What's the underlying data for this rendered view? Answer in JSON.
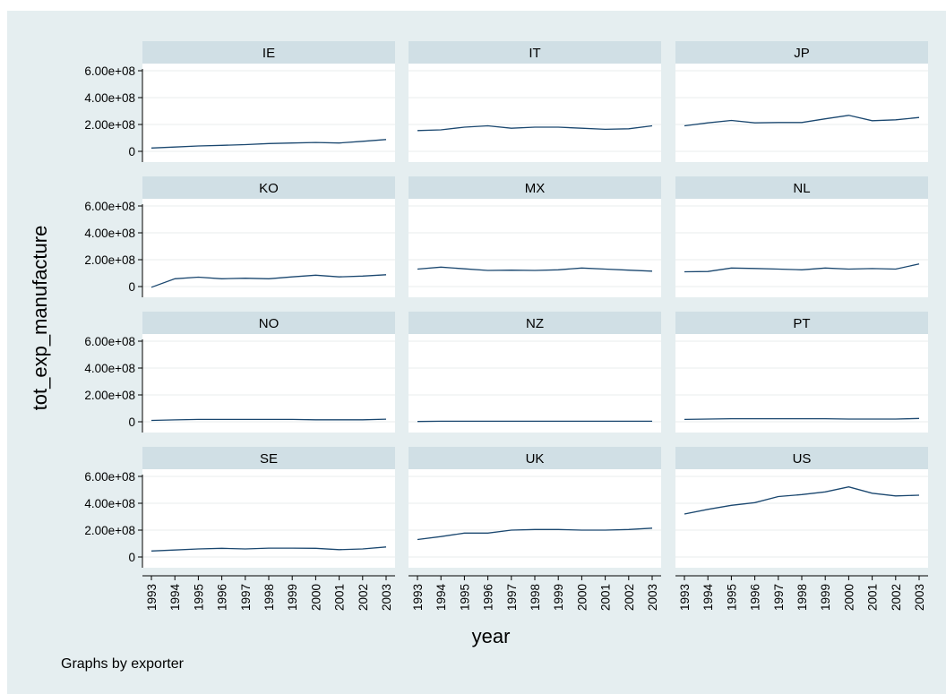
{
  "chart_data": {
    "type": "line",
    "layout": "small-multiples",
    "ylabel": "tot_exp_manufacture",
    "xlabel": "year",
    "note": "Graphs by exporter",
    "x": [
      1993,
      1994,
      1995,
      1996,
      1997,
      1998,
      1999,
      2000,
      2001,
      2002,
      2003
    ],
    "ylim": [
      0,
      600000000
    ],
    "yticks": [
      0,
      200000000,
      400000000,
      600000000
    ],
    "ytick_labels": [
      "0",
      "2.00e+08",
      "4.00e+08",
      "6.00e+08"
    ],
    "grid": true,
    "colors": {
      "background": "#e5eef0",
      "panel": "#ffffff",
      "strip": "#d0dfe5",
      "line": "#1a476f",
      "grid": "#e8eeee"
    },
    "panels": [
      {
        "name": "IE",
        "values": [
          25000000,
          32000000,
          40000000,
          45000000,
          50000000,
          58000000,
          62000000,
          66000000,
          62000000,
          75000000,
          88000000
        ]
      },
      {
        "name": "IT",
        "values": [
          155000000,
          160000000,
          180000000,
          190000000,
          172000000,
          180000000,
          180000000,
          172000000,
          164000000,
          168000000,
          190000000
        ]
      },
      {
        "name": "JP",
        "values": [
          190000000,
          212000000,
          230000000,
          212000000,
          215000000,
          215000000,
          242000000,
          268000000,
          228000000,
          235000000,
          252000000
        ]
      },
      {
        "name": "KO",
        "values": [
          -5000000,
          58000000,
          70000000,
          58000000,
          62000000,
          58000000,
          72000000,
          85000000,
          72000000,
          78000000,
          88000000
        ]
      },
      {
        "name": "MX",
        "values": [
          130000000,
          145000000,
          132000000,
          120000000,
          122000000,
          120000000,
          125000000,
          138000000,
          130000000,
          122000000,
          115000000
        ]
      },
      {
        "name": "NL",
        "values": [
          110000000,
          112000000,
          138000000,
          135000000,
          130000000,
          125000000,
          138000000,
          130000000,
          134000000,
          130000000,
          168000000
        ]
      },
      {
        "name": "NO",
        "values": [
          10000000,
          14000000,
          17000000,
          17000000,
          17000000,
          17000000,
          17000000,
          15000000,
          15000000,
          15000000,
          19000000
        ]
      },
      {
        "name": "NZ",
        "values": [
          2000000,
          4000000,
          4000000,
          4000000,
          4000000,
          4000000,
          4000000,
          4000000,
          4000000,
          4000000,
          4000000
        ]
      },
      {
        "name": "PT",
        "values": [
          17000000,
          20000000,
          23000000,
          23000000,
          23000000,
          23000000,
          23000000,
          20000000,
          20000000,
          20000000,
          25000000
        ]
      },
      {
        "name": "SE",
        "values": [
          45000000,
          52000000,
          60000000,
          65000000,
          60000000,
          66000000,
          66000000,
          65000000,
          55000000,
          60000000,
          75000000
        ]
      },
      {
        "name": "UK",
        "values": [
          130000000,
          152000000,
          178000000,
          178000000,
          200000000,
          205000000,
          205000000,
          200000000,
          200000000,
          205000000,
          215000000
        ]
      },
      {
        "name": "US",
        "values": [
          320000000,
          355000000,
          385000000,
          405000000,
          450000000,
          465000000,
          485000000,
          522000000,
          475000000,
          455000000,
          460000000
        ]
      }
    ]
  }
}
